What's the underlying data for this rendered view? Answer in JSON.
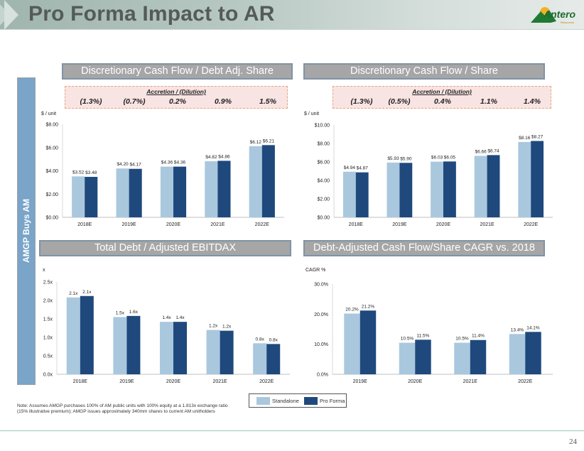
{
  "header": {
    "title": "Pro Forma Impact to AR",
    "logo_text": "Antero",
    "logo_subtext": "Resources"
  },
  "side_label": "AMGP Buys AM",
  "colors": {
    "standalone": "#a9c8de",
    "pro_forma": "#1f497d",
    "accent_panel": "#7aa4c8"
  },
  "sections": [
    {
      "title": "Discretionary Cash Flow / Debt Adj. Share",
      "accretion": {
        "title": "Accretion / (Dilution)",
        "values": [
          "(1.3%)",
          "(0.7%)",
          "0.2%",
          "0.9%",
          "1.5%"
        ]
      }
    },
    {
      "title": "Discretionary Cash Flow / Share",
      "accretion": {
        "title": "Accretion / (Dilution)",
        "values": [
          "(1.3%)",
          "(0.5%)",
          "0.4%",
          "1.1%",
          "1.4%"
        ]
      }
    },
    {
      "title": "Total Debt / Adjusted EBITDAX"
    },
    {
      "title": "Debt-Adjusted Cash Flow/Share CAGR vs. 2018"
    }
  ],
  "chart_data": [
    {
      "type": "bar",
      "title": "Discretionary Cash Flow / Debt Adj. Share",
      "ylabel": "$ / unit",
      "categories": [
        "2018E",
        "2019E",
        "2020E",
        "2021E",
        "2022E"
      ],
      "series": [
        {
          "name": "Standalone",
          "values": [
            3.52,
            4.2,
            4.36,
            4.82,
            6.12
          ],
          "labels": [
            "$3.52",
            "$4.20",
            "$4.36",
            "$4.82",
            "$6.12"
          ]
        },
        {
          "name": "Pro Forma",
          "values": [
            3.48,
            4.17,
            4.36,
            4.86,
            6.21
          ],
          "labels": [
            "$3.48",
            "$4.17",
            "$4.36",
            "$4.86",
            "$6.21"
          ]
        }
      ],
      "ylim": [
        0,
        8
      ],
      "yticks": [
        "$0.00",
        "$2.00",
        "$4.00",
        "$6.00",
        "$8.00"
      ],
      "grid": false
    },
    {
      "type": "bar",
      "title": "Discretionary Cash Flow / Share",
      "ylabel": "$ / unit",
      "categories": [
        "2018E",
        "2019E",
        "2020E",
        "2021E",
        "2022E"
      ],
      "series": [
        {
          "name": "Standalone",
          "values": [
            4.94,
            5.93,
            6.03,
            6.66,
            8.16
          ],
          "labels": [
            "$4.94",
            "$5.93",
            "$6.03",
            "$6.66",
            "$8.16"
          ]
        },
        {
          "name": "Pro Forma",
          "values": [
            4.87,
            5.9,
            6.05,
            6.74,
            8.27
          ],
          "labels": [
            "$4.87",
            "$5.90",
            "$6.05",
            "$6.74",
            "$8.27"
          ]
        }
      ],
      "ylim": [
        0,
        10
      ],
      "yticks": [
        "$0.00",
        "$2.00",
        "$4.00",
        "$6.00",
        "$8.00",
        "$10.00"
      ],
      "grid": false
    },
    {
      "type": "bar",
      "title": "Total Debt / Adjusted EBITDAX",
      "ylabel": "x",
      "categories": [
        "2018E",
        "2019E",
        "2020E",
        "2021E",
        "2022E"
      ],
      "series": [
        {
          "name": "Standalone",
          "values": [
            2.08,
            1.55,
            1.42,
            1.2,
            0.84
          ],
          "labels": [
            "2.1x",
            "1.5x",
            "1.4x",
            "1.2x",
            "0.8x"
          ]
        },
        {
          "name": "Pro Forma",
          "values": [
            2.12,
            1.58,
            1.42,
            1.18,
            0.82
          ],
          "labels": [
            "2.1x",
            "1.6x",
            "1.4x",
            "1.2x",
            "0.8x"
          ]
        }
      ],
      "ylim": [
        0,
        2.5
      ],
      "yticks": [
        "0.0x",
        "0.5x",
        "1.0x",
        "1.5x",
        "2.0x",
        "2.5x"
      ],
      "grid": false
    },
    {
      "type": "bar",
      "title": "Debt-Adjusted Cash Flow/Share CAGR vs. 2018",
      "ylabel": "CAGR %",
      "categories": [
        "2019E",
        "2020E",
        "2021E",
        "2022E"
      ],
      "series": [
        {
          "name": "Standalone",
          "values": [
            20.2,
            10.5,
            10.5,
            13.4
          ],
          "labels": [
            "20.2%",
            "10.5%",
            "10.5%",
            "13.4%"
          ]
        },
        {
          "name": "Pro Forma",
          "values": [
            21.2,
            11.5,
            11.4,
            14.1
          ],
          "labels": [
            "21.2%",
            "11.5%",
            "11.4%",
            "14.1%"
          ]
        }
      ],
      "ylim": [
        0,
        30
      ],
      "yticks": [
        "0.0%",
        "10.0%",
        "20.0%",
        "30.0%"
      ],
      "grid": false
    }
  ],
  "legend": {
    "items": [
      "Standalone",
      "Pro Forma"
    ]
  },
  "note": "Note: Assumes AMGP purchases 100% of AM public units with 100% equity at a 1.813x exchange ratio (15% illustrative premium); AMGP issues approximately 340mm shares to current AM unitholders",
  "page_number": "24"
}
